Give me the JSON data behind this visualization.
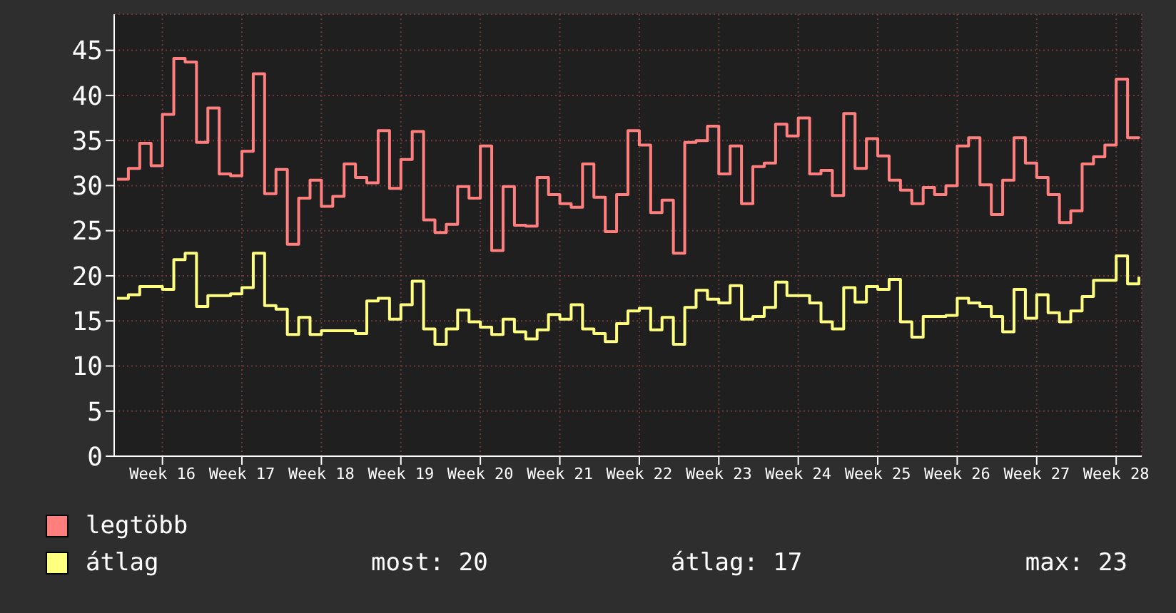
{
  "chart_data": {
    "type": "step",
    "categories": [
      null,
      null,
      null,
      null,
      "Week 16",
      null,
      null,
      null,
      null,
      null,
      null,
      "Week 17",
      null,
      null,
      null,
      null,
      null,
      null,
      "Week 18",
      null,
      null,
      null,
      null,
      null,
      null,
      "Week 19",
      null,
      null,
      null,
      null,
      null,
      null,
      "Week 20",
      null,
      null,
      null,
      null,
      null,
      null,
      "Week 21",
      null,
      null,
      null,
      null,
      null,
      null,
      "Week 22",
      null,
      null,
      null,
      null,
      null,
      null,
      "Week 23",
      null,
      null,
      null,
      null,
      null,
      null,
      "Week 24",
      null,
      null,
      null,
      null,
      null,
      null,
      "Week 25",
      null,
      null,
      null,
      null,
      null,
      null,
      "Week 26",
      null,
      null,
      null,
      null,
      null,
      null,
      "Week 27",
      null,
      null,
      null,
      null,
      null,
      null,
      "Week 28",
      null,
      null
    ],
    "series": [
      {
        "name": "legtöbb",
        "color": "#ff7f7f",
        "values": [
          30.7,
          31.9,
          34.7,
          32.2,
          37.9,
          44.1,
          43.7,
          34.8,
          38.6,
          31.3,
          31.1,
          33.8,
          42.4,
          29.1,
          31.8,
          23.5,
          28.6,
          30.6,
          27.7,
          28.8,
          32.4,
          30.9,
          30.3,
          36.1,
          29.7,
          32.9,
          36.0,
          26.2,
          24.8,
          25.7,
          29.9,
          28.6,
          34.4,
          22.8,
          29.9,
          25.6,
          25.5,
          30.9,
          29.0,
          28.0,
          27.6,
          32.4,
          28.7,
          24.9,
          29.0,
          36.1,
          34.5,
          27.0,
          28.4,
          22.5,
          34.8,
          35.0,
          36.6,
          31.3,
          34.4,
          28.0,
          32.1,
          32.5,
          36.8,
          35.5,
          37.5,
          31.3,
          31.7,
          28.9,
          38.0,
          31.9,
          35.2,
          33.3,
          30.6,
          29.5,
          28.0,
          29.8,
          29.0,
          30.0,
          34.4,
          35.3,
          30.1,
          26.8,
          30.6,
          35.3,
          32.5,
          30.9,
          29.0,
          25.9,
          27.2,
          32.4,
          33.2,
          34.5,
          41.8,
          35.3,
          35.2
        ]
      },
      {
        "name": "átlag",
        "color": "#ffff80",
        "values": [
          17.5,
          17.9,
          18.8,
          18.8,
          18.5,
          21.8,
          22.5,
          16.6,
          17.8,
          17.8,
          18.0,
          18.7,
          22.5,
          16.7,
          16.3,
          13.5,
          15.4,
          13.5,
          13.9,
          13.9,
          13.9,
          13.6,
          17.2,
          17.5,
          15.2,
          16.8,
          19.4,
          14.1,
          12.4,
          14.1,
          16.2,
          14.9,
          14.3,
          13.5,
          15.2,
          13.8,
          13.0,
          14.0,
          15.7,
          15.2,
          16.8,
          14.1,
          13.6,
          12.7,
          14.7,
          16.1,
          16.4,
          14.0,
          15.4,
          12.4,
          16.5,
          18.4,
          17.4,
          17.0,
          18.9,
          15.2,
          15.5,
          16.5,
          19.3,
          17.8,
          17.8,
          17.0,
          14.9,
          14.1,
          18.7,
          17.1,
          18.8,
          18.5,
          19.6,
          14.9,
          13.2,
          15.5,
          15.5,
          15.6,
          17.5,
          17.0,
          16.6,
          15.5,
          13.8,
          18.5,
          15.3,
          17.9,
          15.9,
          14.9,
          16.1,
          17.7,
          19.5,
          19.5,
          22.2,
          19.1,
          19.9
        ]
      }
    ],
    "ylim": [
      0,
      49
    ],
    "yticks": [
      0,
      5,
      10,
      15,
      20,
      25,
      30,
      35,
      40,
      45
    ],
    "grid": true,
    "legend": "bottom",
    "marker": "none",
    "line_style": "solid",
    "annotations": [
      "most: 20",
      "átlag: 17",
      "max: 23"
    ]
  }
}
